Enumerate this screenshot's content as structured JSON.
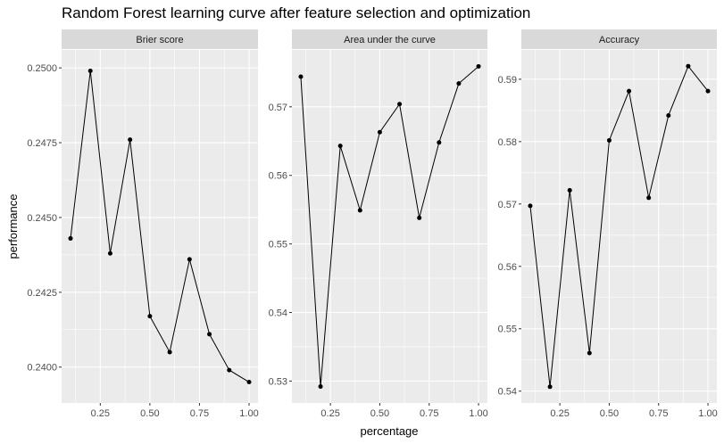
{
  "chart_data": {
    "type": "line",
    "title": "Random Forest learning curve after feature selection and optimization",
    "xlabel": "percentage",
    "ylabel": "performance",
    "grid": true,
    "x": [
      0.1,
      0.2,
      0.3,
      0.4,
      0.5,
      0.6,
      0.7,
      0.8,
      0.9,
      1.0
    ],
    "x_ticks": [
      0.25,
      0.5,
      0.75,
      1.0
    ],
    "x_tick_labels": [
      "0.25",
      "0.50",
      "0.75",
      "1.00"
    ],
    "xlim": [
      0.055,
      1.045
    ],
    "panels": [
      {
        "name": "Brier score",
        "values": [
          0.2443,
          0.2499,
          0.2438,
          0.2476,
          0.2417,
          0.2405,
          0.2436,
          0.2411,
          0.2399,
          0.2395
        ],
        "ylim": [
          0.2388,
          0.2506
        ],
        "y_ticks": [
          0.24,
          0.2425,
          0.245,
          0.2475,
          0.25
        ],
        "y_tick_labels": [
          "0.2400",
          "0.2425",
          "0.2450",
          "0.2475",
          "0.2500"
        ]
      },
      {
        "name": "Area under the curve",
        "values": [
          0.5744,
          0.5292,
          0.5643,
          0.5549,
          0.5663,
          0.5704,
          0.5538,
          0.5648,
          0.5734,
          0.5759
        ],
        "ylim": [
          0.5268,
          0.5783
        ],
        "y_ticks": [
          0.53,
          0.54,
          0.55,
          0.56,
          0.57
        ],
        "y_tick_labels": [
          "0.53",
          "0.54",
          "0.55",
          "0.56",
          "0.57"
        ]
      },
      {
        "name": "Accuracy",
        "values": [
          0.5697,
          0.5407,
          0.5722,
          0.5461,
          0.5802,
          0.5881,
          0.571,
          0.5842,
          0.5921,
          0.5881
        ],
        "ylim": [
          0.5381,
          0.5947
        ],
        "y_ticks": [
          0.54,
          0.55,
          0.56,
          0.57,
          0.58,
          0.59
        ],
        "y_tick_labels": [
          "0.54",
          "0.55",
          "0.56",
          "0.57",
          "0.58",
          "0.59"
        ]
      }
    ],
    "colors": {
      "panel_background": "#ebebeb",
      "strip_background": "#d9d9d9",
      "grid": "#ffffff",
      "line": "#000000",
      "point": "#000000"
    }
  }
}
